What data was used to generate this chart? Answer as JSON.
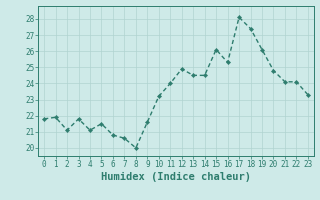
{
  "x": [
    0,
    1,
    2,
    3,
    4,
    5,
    6,
    7,
    8,
    9,
    10,
    11,
    12,
    13,
    14,
    15,
    16,
    17,
    18,
    19,
    20,
    21,
    22,
    23
  ],
  "y": [
    21.8,
    21.9,
    21.1,
    21.8,
    21.1,
    21.5,
    20.8,
    20.6,
    20.0,
    21.6,
    23.2,
    24.0,
    24.9,
    24.5,
    24.5,
    26.1,
    25.3,
    28.1,
    27.4,
    26.1,
    24.8,
    24.1,
    24.1,
    23.3
  ],
  "line_color": "#2e7d6e",
  "marker": "D",
  "marker_size": 2.2,
  "line_width": 1.0,
  "bg_color": "#ceeae8",
  "grid_color": "#b0d4d0",
  "xlabel": "Humidex (Indice chaleur)",
  "ylim": [
    19.5,
    28.8
  ],
  "xlim": [
    -0.5,
    23.5
  ],
  "yticks": [
    20,
    21,
    22,
    23,
    24,
    25,
    26,
    27,
    28
  ],
  "xticks": [
    0,
    1,
    2,
    3,
    4,
    5,
    6,
    7,
    8,
    9,
    10,
    11,
    12,
    13,
    14,
    15,
    16,
    17,
    18,
    19,
    20,
    21,
    22,
    23
  ],
  "tick_color": "#2e7d6e",
  "tick_fontsize": 5.5,
  "xlabel_fontsize": 7.5
}
